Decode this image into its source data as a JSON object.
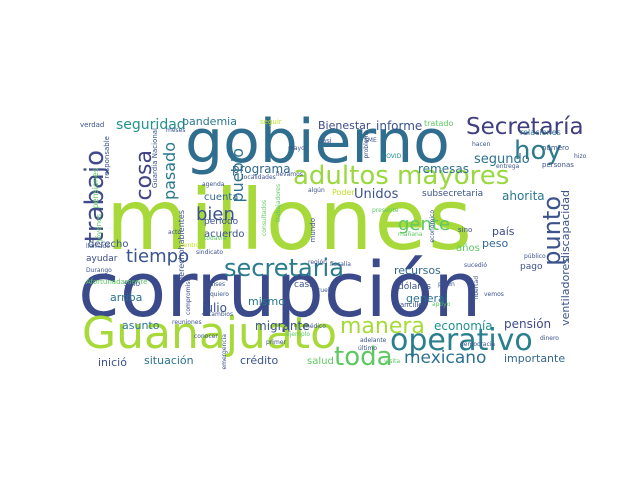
{
  "words": [
    {
      "text": "millones",
      "color": "#a8d93a"
    },
    {
      "text": "corrupción",
      "color": "#3b4a8a"
    },
    {
      "text": "gobierno",
      "color": "#2f6e8e"
    },
    {
      "text": "Guanajuato",
      "color": "#a8d93a"
    },
    {
      "text": "adultos mayores",
      "color": "#9ad83f"
    },
    {
      "text": "operativo",
      "color": "#2a7f8e"
    },
    {
      "text": "Secretaría",
      "color": "#3f3f7f"
    },
    {
      "text": "secretaria",
      "color": "#2b7c8d"
    },
    {
      "text": "trabajo",
      "color": "#3e4a89"
    },
    {
      "text": "hoy",
      "color": "#2d7a8e"
    },
    {
      "text": "manera",
      "color": "#a5db36"
    },
    {
      "text": "toda",
      "color": "#5ec962"
    },
    {
      "text": "gente",
      "color": "#5ec962"
    },
    {
      "text": "punto",
      "color": "#3b528b"
    },
    {
      "text": "cosa",
      "color": "#414487"
    },
    {
      "text": "mexicano",
      "color": "#2c728e"
    },
    {
      "text": "tiempo",
      "color": "#3a548c"
    },
    {
      "text": "bien",
      "color": "#3b528b"
    },
    {
      "text": "pasado",
      "color": "#2a788e"
    },
    {
      "text": "seguridad",
      "color": "#21918c"
    },
    {
      "text": "pueblo",
      "color": "#2c728e"
    },
    {
      "text": "pandemia",
      "color": "#2a788e"
    },
    {
      "text": "informe",
      "color": "#3b528b"
    },
    {
      "text": "Bienestar",
      "color": "#3e4a89"
    },
    {
      "text": "segundo",
      "color": "#2c728e"
    },
    {
      "text": "programa",
      "color": "#31688e"
    },
    {
      "text": "Unidos",
      "color": "#3b528b"
    },
    {
      "text": "ahorita",
      "color": "#2a788e"
    },
    {
      "text": "remesas",
      "color": "#2c728e"
    },
    {
      "text": "subsecretaria",
      "color": "#3b528b"
    },
    {
      "text": "país",
      "color": "#3e4a89"
    },
    {
      "text": "peso",
      "color": "#31688e"
    },
    {
      "text": "discapacidad",
      "color": "#3b528b"
    },
    {
      "text": "pensión",
      "color": "#3e4a89"
    },
    {
      "text": "economía",
      "color": "#21918c"
    },
    {
      "text": "ventiladores",
      "color": "#3b528b"
    },
    {
      "text": "importante",
      "color": "#31688e"
    },
    {
      "text": "migrante",
      "color": "#3b528b"
    },
    {
      "text": "situación",
      "color": "#2c728e"
    },
    {
      "text": "crédito",
      "color": "#3b528b"
    },
    {
      "text": "inició",
      "color": "#3b528b"
    },
    {
      "text": "asunto",
      "color": "#2a788e"
    },
    {
      "text": "julio",
      "color": "#3b528b"
    },
    {
      "text": "mismo",
      "color": "#2a788e"
    },
    {
      "text": "general",
      "color": "#2c728e"
    },
    {
      "text": "recursos",
      "color": "#31688e"
    },
    {
      "text": "salud",
      "color": "#5ec962"
    },
    {
      "text": "derecho",
      "color": "#3b528b"
    },
    {
      "text": "arriba",
      "color": "#2c728e"
    },
    {
      "text": "ayudar",
      "color": "#3e4a89"
    },
    {
      "text": "cuenta",
      "color": "#31688e"
    },
    {
      "text": "acuerdo",
      "color": "#3b528b"
    },
    {
      "text": "periodo",
      "color": "#3b528b"
    },
    {
      "text": "años",
      "color": "#5ec962"
    },
    {
      "text": "dólares",
      "color": "#3b528b"
    },
    {
      "text": "casa",
      "color": "#3b528b"
    },
    {
      "text": "pago",
      "color": "#3b528b"
    },
    {
      "text": "tratado",
      "color": "#5ec962"
    },
    {
      "text": "relaciones",
      "color": "#2c728e"
    },
    {
      "text": "derechohabientes",
      "color": "#3b528b"
    },
    {
      "text": "pensiones",
      "color": "#5ec962"
    },
    {
      "text": "responsable",
      "color": "#3b528b"
    },
    {
      "text": "Guardia Nacional",
      "color": "#3b528b"
    },
    {
      "text": "verdad",
      "color": "#3b528b"
    },
    {
      "text": "meses",
      "color": "#3b528b"
    },
    {
      "text": "seguir",
      "color": "#c2df23"
    },
    {
      "text": "mayo",
      "color": "#3b528b"
    },
    {
      "text": "casi",
      "color": "#3b528b"
    },
    {
      "text": "SME",
      "color": "#3b528b"
    },
    {
      "text": "hacen",
      "color": "#3b528b"
    },
    {
      "text": "hizo",
      "color": "#3b528b"
    },
    {
      "text": "número",
      "color": "#3b528b"
    },
    {
      "text": "personas",
      "color": "#3b528b"
    },
    {
      "text": "entrega",
      "color": "#3b528b"
    },
    {
      "text": "COVID",
      "color": "#21918c"
    },
    {
      "text": "agenda",
      "color": "#3b528b"
    },
    {
      "text": "localidades",
      "color": "#3b528b"
    },
    {
      "text": "llevamos",
      "color": "#3b528b"
    },
    {
      "text": "Poder",
      "color": "#c2df23"
    },
    {
      "text": "algún",
      "color": "#3b528b"
    },
    {
      "text": "región",
      "color": "#3b528b"
    },
    {
      "text": "mundo",
      "color": "#3b528b"
    },
    {
      "text": "acto",
      "color": "#3b528b"
    },
    {
      "text": "jóvenes",
      "color": "#5ec962"
    },
    {
      "text": "llamado",
      "color": "#3b528b"
    },
    {
      "text": "Durango",
      "color": "#3b528b"
    },
    {
      "text": "Afortunadamente",
      "color": "#5ec962"
    },
    {
      "text": "sindicato",
      "color": "#3b528b"
    },
    {
      "text": "dentro",
      "color": "#c2df23"
    },
    {
      "text": "fiscalía",
      "color": "#3b528b"
    },
    {
      "text": "sino",
      "color": "#3b528b"
    },
    {
      "text": "público",
      "color": "#3b528b"
    },
    {
      "text": "sucedió",
      "color": "#3b528b"
    },
    {
      "text": "solo",
      "color": "#3b528b"
    },
    {
      "text": "países",
      "color": "#3b528b"
    },
    {
      "text": "quiero",
      "color": "#3b528b"
    },
    {
      "text": "compromiso",
      "color": "#3b528b"
    },
    {
      "text": "prueba",
      "color": "#3b528b"
    },
    {
      "text": "canciller",
      "color": "#3b528b"
    },
    {
      "text": "piden",
      "color": "#3b528b"
    },
    {
      "text": "libertad",
      "color": "#3b528b"
    },
    {
      "text": "vemos",
      "color": "#3b528b"
    },
    {
      "text": "apoyo",
      "color": "#5ec962"
    },
    {
      "text": "dinero",
      "color": "#3b528b"
    },
    {
      "text": "médico",
      "color": "#3b528b"
    },
    {
      "text": "democracia",
      "color": "#3b528b"
    },
    {
      "text": "reuniones",
      "color": "#3b528b"
    },
    {
      "text": "ejemplo",
      "color": "#5ec962"
    },
    {
      "text": "cambios",
      "color": "#3b528b"
    },
    {
      "text": "primer",
      "color": "#3b528b"
    },
    {
      "text": "último",
      "color": "#3b528b"
    },
    {
      "text": "adelante",
      "color": "#3b528b"
    },
    {
      "text": "visita",
      "color": "#5ec962"
    },
    {
      "text": "emergencia",
      "color": "#3b528b"
    },
    {
      "text": "conocer",
      "color": "#3b528b"
    },
    {
      "text": "todavía",
      "color": "#5ec962"
    },
    {
      "text": "trabajadores",
      "color": "#5ec962"
    },
    {
      "text": "consultados",
      "color": "#5ec962"
    },
    {
      "text": "mañana",
      "color": "#5ec962"
    },
    {
      "text": "presente",
      "color": "#5ec962"
    },
    {
      "text": "problema",
      "color": "#3b528b"
    },
    {
      "text": "económico",
      "color": "#3b528b"
    }
  ]
}
